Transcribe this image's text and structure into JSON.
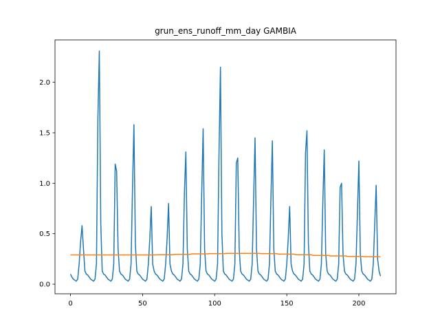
{
  "chart_data": {
    "type": "line",
    "title": "grun_ens_runoff_mm_day GAMBIA",
    "x": [
      0,
      1,
      2,
      3,
      4,
      5,
      6,
      7,
      8,
      9,
      10,
      11,
      12,
      13,
      14,
      15,
      16,
      17,
      18,
      19,
      20,
      21,
      22,
      23,
      24,
      25,
      26,
      27,
      28,
      29,
      30,
      31,
      32,
      33,
      34,
      35,
      36,
      37,
      38,
      39,
      40,
      41,
      42,
      43,
      44,
      45,
      46,
      47,
      48,
      49,
      50,
      51,
      52,
      53,
      54,
      55,
      56,
      57,
      58,
      59,
      60,
      61,
      62,
      63,
      64,
      65,
      66,
      67,
      68,
      69,
      70,
      71,
      72,
      73,
      74,
      75,
      76,
      77,
      78,
      79,
      80,
      81,
      82,
      83,
      84,
      85,
      86,
      87,
      88,
      89,
      90,
      91,
      92,
      93,
      94,
      95,
      96,
      97,
      98,
      99,
      100,
      101,
      102,
      103,
      104,
      105,
      106,
      107,
      108,
      109,
      110,
      111,
      112,
      113,
      114,
      115,
      116,
      117,
      118,
      119,
      120,
      121,
      122,
      123,
      124,
      125,
      126,
      127,
      128,
      129,
      130,
      131,
      132,
      133,
      134,
      135,
      136,
      137,
      138,
      139,
      140,
      141,
      142,
      143,
      144,
      145,
      146,
      147,
      148,
      149,
      150,
      151,
      152,
      153,
      154,
      155,
      156,
      157,
      158,
      159,
      160,
      161,
      162,
      163,
      164,
      165,
      166,
      167,
      168,
      169,
      170,
      171,
      172,
      173,
      174,
      175,
      176,
      177,
      178,
      179,
      180,
      181,
      182,
      183,
      184,
      185,
      186,
      187,
      188,
      189,
      190,
      191,
      192,
      193,
      194,
      195,
      196,
      197,
      198,
      199,
      200,
      201,
      202,
      203,
      204,
      205,
      206,
      207,
      208,
      209,
      210,
      211,
      212,
      213,
      214,
      215
    ],
    "series": [
      {
        "color": "#1f77b4",
        "values": [
          0.1,
          0.07,
          0.05,
          0.04,
          0.03,
          0.05,
          0.2,
          0.42,
          0.58,
          0.35,
          0.13,
          0.1,
          0.09,
          0.07,
          0.05,
          0.04,
          0.03,
          0.05,
          0.2,
          1.65,
          2.31,
          0.6,
          0.13,
          0.1,
          0.09,
          0.07,
          0.05,
          0.04,
          0.03,
          0.05,
          0.2,
          1.19,
          1.12,
          0.35,
          0.13,
          0.1,
          0.09,
          0.07,
          0.05,
          0.04,
          0.03,
          0.05,
          0.2,
          0.95,
          1.58,
          0.4,
          0.13,
          0.1,
          0.09,
          0.07,
          0.05,
          0.04,
          0.03,
          0.05,
          0.2,
          0.45,
          0.77,
          0.2,
          0.13,
          0.1,
          0.09,
          0.07,
          0.05,
          0.04,
          0.03,
          0.05,
          0.2,
          0.45,
          0.8,
          0.2,
          0.13,
          0.1,
          0.09,
          0.07,
          0.05,
          0.04,
          0.03,
          0.05,
          0.2,
          0.9,
          1.31,
          0.35,
          0.13,
          0.1,
          0.09,
          0.07,
          0.05,
          0.04,
          0.03,
          0.05,
          0.2,
          0.9,
          1.54,
          0.35,
          0.13,
          0.1,
          0.09,
          0.07,
          0.05,
          0.04,
          0.03,
          0.05,
          0.2,
          1.3,
          2.15,
          0.5,
          0.13,
          0.1,
          0.09,
          0.07,
          0.05,
          0.04,
          0.03,
          0.05,
          0.2,
          1.2,
          1.25,
          0.35,
          0.13,
          0.1,
          0.09,
          0.07,
          0.05,
          0.04,
          0.03,
          0.05,
          0.2,
          0.85,
          1.45,
          0.35,
          0.13,
          0.1,
          0.09,
          0.07,
          0.05,
          0.04,
          0.03,
          0.05,
          0.2,
          0.85,
          1.42,
          0.35,
          0.13,
          0.1,
          0.09,
          0.07,
          0.05,
          0.04,
          0.03,
          0.05,
          0.2,
          0.45,
          0.77,
          0.2,
          0.13,
          0.1,
          0.09,
          0.07,
          0.05,
          0.04,
          0.03,
          0.05,
          0.2,
          1.3,
          1.52,
          0.4,
          0.13,
          0.1,
          0.09,
          0.07,
          0.05,
          0.04,
          0.03,
          0.05,
          0.2,
          0.8,
          1.33,
          0.3,
          0.13,
          0.1,
          0.09,
          0.07,
          0.05,
          0.04,
          0.03,
          0.05,
          0.2,
          0.96,
          1.0,
          0.3,
          0.13,
          0.1,
          0.09,
          0.07,
          0.05,
          0.04,
          0.03,
          0.05,
          0.2,
          0.7,
          1.22,
          0.3,
          0.13,
          0.1,
          0.09,
          0.07,
          0.05,
          0.04,
          0.03,
          0.05,
          0.2,
          0.6,
          0.98,
          0.25,
          0.13,
          0.08
        ]
      },
      {
        "color": "#ff7f0e",
        "values": [
          0.29,
          0.29,
          0.29,
          0.29,
          0.29,
          0.29,
          0.29,
          0.29,
          0.29,
          0.29,
          0.29,
          0.29,
          0.29,
          0.29,
          0.29,
          0.29,
          0.29,
          0.29,
          0.29,
          0.29,
          0.29,
          0.29,
          0.29,
          0.29,
          0.29,
          0.29,
          0.29,
          0.29,
          0.29,
          0.29,
          0.29,
          0.29,
          0.29,
          0.29,
          0.29,
          0.29,
          0.29,
          0.29,
          0.29,
          0.29,
          0.29,
          0.29,
          0.29,
          0.29,
          0.29,
          0.29,
          0.29,
          0.29,
          0.29,
          0.29,
          0.29,
          0.29,
          0.29,
          0.29,
          0.29,
          0.29,
          0.29,
          0.29,
          0.29,
          0.29,
          0.292,
          0.292,
          0.292,
          0.292,
          0.292,
          0.292,
          0.292,
          0.292,
          0.292,
          0.292,
          0.292,
          0.292,
          0.295,
          0.295,
          0.295,
          0.295,
          0.295,
          0.295,
          0.295,
          0.295,
          0.295,
          0.295,
          0.295,
          0.295,
          0.3,
          0.3,
          0.3,
          0.3,
          0.3,
          0.3,
          0.3,
          0.3,
          0.3,
          0.3,
          0.3,
          0.3,
          0.303,
          0.303,
          0.303,
          0.303,
          0.303,
          0.303,
          0.303,
          0.303,
          0.303,
          0.303,
          0.303,
          0.303,
          0.305,
          0.305,
          0.305,
          0.305,
          0.305,
          0.305,
          0.305,
          0.305,
          0.305,
          0.305,
          0.305,
          0.305,
          0.305,
          0.305,
          0.305,
          0.305,
          0.305,
          0.305,
          0.305,
          0.305,
          0.305,
          0.305,
          0.305,
          0.305,
          0.303,
          0.303,
          0.303,
          0.303,
          0.303,
          0.303,
          0.303,
          0.303,
          0.303,
          0.303,
          0.303,
          0.303,
          0.298,
          0.298,
          0.298,
          0.298,
          0.298,
          0.298,
          0.298,
          0.298,
          0.298,
          0.298,
          0.298,
          0.298,
          0.292,
          0.292,
          0.292,
          0.292,
          0.292,
          0.292,
          0.292,
          0.292,
          0.292,
          0.292,
          0.292,
          0.292,
          0.285,
          0.285,
          0.285,
          0.285,
          0.285,
          0.285,
          0.285,
          0.285,
          0.285,
          0.285,
          0.285,
          0.285,
          0.28,
          0.28,
          0.28,
          0.28,
          0.28,
          0.28,
          0.28,
          0.28,
          0.28,
          0.28,
          0.28,
          0.28,
          0.275,
          0.275,
          0.275,
          0.275,
          0.275,
          0.275,
          0.275,
          0.275,
          0.275,
          0.275,
          0.275,
          0.275,
          0.272,
          0.272,
          0.272,
          0.272,
          0.272,
          0.272,
          0.272,
          0.272,
          0.272,
          0.272,
          0.272,
          0.27
        ]
      }
    ],
    "xlim": [
      -10.75,
      225.75
    ],
    "xticks": [
      0,
      50,
      100,
      150,
      200
    ],
    "ylim": [
      -0.095,
      2.42
    ],
    "yticks": [
      {
        "value": 0,
        "label": "0.0"
      },
      {
        "value": 0.5,
        "label": "0.5"
      },
      {
        "value": 1,
        "label": "1.0"
      },
      {
        "value": 1.5,
        "label": "1.5"
      },
      {
        "value": 2,
        "label": "2.0"
      }
    ]
  }
}
